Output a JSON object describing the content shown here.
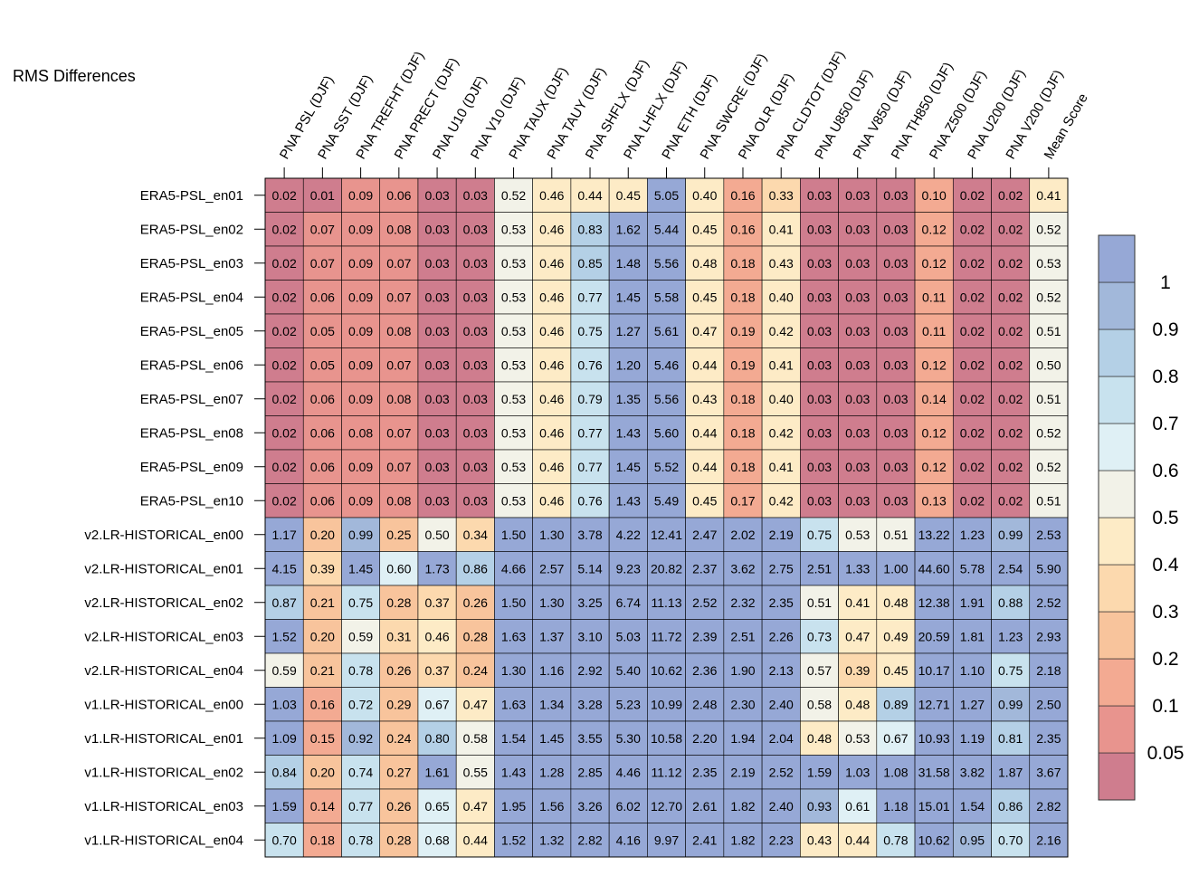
{
  "chart_data": {
    "type": "heatmap",
    "title": "RMS Differences",
    "columns": [
      "PNA PSL (DJF)",
      "PNA SST (DJF)",
      "PNA TREFHT (DJF)",
      "PNA PRECT (DJF)",
      "PNA U10 (DJF)",
      "PNA V10 (DJF)",
      "PNA TAUX (DJF)",
      "PNA TAUY (DJF)",
      "PNA SHFLX (DJF)",
      "PNA LHFLX (DJF)",
      "PNA ETH (DJF)",
      "PNA SWCRE (DJF)",
      "PNA OLR (DJF)",
      "PNA CLDTOT (DJF)",
      "PNA U850 (DJF)",
      "PNA V850 (DJF)",
      "PNA TH850 (DJF)",
      "PNA Z500 (DJF)",
      "PNA U200 (DJF)",
      "PNA V200 (DJF)",
      "Mean Score"
    ],
    "rows": [
      {
        "name": "ERA5-PSL_en01",
        "values": [
          "0.02",
          "0.01",
          "0.09",
          "0.06",
          "0.03",
          "0.03",
          "0.52",
          "0.46",
          "0.44",
          "0.45",
          "5.05",
          "0.40",
          "0.16",
          "0.33",
          "0.03",
          "0.03",
          "0.03",
          "0.10",
          "0.02",
          "0.02",
          "0.41"
        ]
      },
      {
        "name": "ERA5-PSL_en02",
        "values": [
          "0.02",
          "0.07",
          "0.09",
          "0.08",
          "0.03",
          "0.03",
          "0.53",
          "0.46",
          "0.83",
          "1.62",
          "5.44",
          "0.45",
          "0.16",
          "0.41",
          "0.03",
          "0.03",
          "0.03",
          "0.12",
          "0.02",
          "0.02",
          "0.52"
        ]
      },
      {
        "name": "ERA5-PSL_en03",
        "values": [
          "0.02",
          "0.07",
          "0.09",
          "0.07",
          "0.03",
          "0.03",
          "0.53",
          "0.46",
          "0.85",
          "1.48",
          "5.56",
          "0.48",
          "0.18",
          "0.43",
          "0.03",
          "0.03",
          "0.03",
          "0.12",
          "0.02",
          "0.02",
          "0.53"
        ]
      },
      {
        "name": "ERA5-PSL_en04",
        "values": [
          "0.02",
          "0.06",
          "0.09",
          "0.07",
          "0.03",
          "0.03",
          "0.53",
          "0.46",
          "0.77",
          "1.45",
          "5.58",
          "0.45",
          "0.18",
          "0.40",
          "0.03",
          "0.03",
          "0.03",
          "0.11",
          "0.02",
          "0.02",
          "0.52"
        ]
      },
      {
        "name": "ERA5-PSL_en05",
        "values": [
          "0.02",
          "0.05",
          "0.09",
          "0.08",
          "0.03",
          "0.03",
          "0.53",
          "0.46",
          "0.75",
          "1.27",
          "5.61",
          "0.47",
          "0.19",
          "0.42",
          "0.03",
          "0.03",
          "0.03",
          "0.11",
          "0.02",
          "0.02",
          "0.51"
        ]
      },
      {
        "name": "ERA5-PSL_en06",
        "values": [
          "0.02",
          "0.05",
          "0.09",
          "0.07",
          "0.03",
          "0.03",
          "0.53",
          "0.46",
          "0.76",
          "1.20",
          "5.46",
          "0.44",
          "0.19",
          "0.41",
          "0.03",
          "0.03",
          "0.03",
          "0.12",
          "0.02",
          "0.02",
          "0.50"
        ]
      },
      {
        "name": "ERA5-PSL_en07",
        "values": [
          "0.02",
          "0.06",
          "0.09",
          "0.08",
          "0.03",
          "0.03",
          "0.53",
          "0.46",
          "0.79",
          "1.35",
          "5.56",
          "0.43",
          "0.18",
          "0.40",
          "0.03",
          "0.03",
          "0.03",
          "0.14",
          "0.02",
          "0.02",
          "0.51"
        ]
      },
      {
        "name": "ERA5-PSL_en08",
        "values": [
          "0.02",
          "0.06",
          "0.08",
          "0.07",
          "0.03",
          "0.03",
          "0.53",
          "0.46",
          "0.77",
          "1.43",
          "5.60",
          "0.44",
          "0.18",
          "0.42",
          "0.03",
          "0.03",
          "0.03",
          "0.12",
          "0.02",
          "0.02",
          "0.52"
        ]
      },
      {
        "name": "ERA5-PSL_en09",
        "values": [
          "0.02",
          "0.06",
          "0.09",
          "0.07",
          "0.03",
          "0.03",
          "0.53",
          "0.46",
          "0.77",
          "1.45",
          "5.52",
          "0.44",
          "0.18",
          "0.41",
          "0.03",
          "0.03",
          "0.03",
          "0.12",
          "0.02",
          "0.02",
          "0.52"
        ]
      },
      {
        "name": "ERA5-PSL_en10",
        "values": [
          "0.02",
          "0.06",
          "0.09",
          "0.08",
          "0.03",
          "0.03",
          "0.53",
          "0.46",
          "0.76",
          "1.43",
          "5.49",
          "0.45",
          "0.17",
          "0.42",
          "0.03",
          "0.03",
          "0.03",
          "0.13",
          "0.02",
          "0.02",
          "0.51"
        ]
      },
      {
        "name": "v2.LR-HISTORICAL_en00",
        "values": [
          "1.17",
          "0.20",
          "0.99",
          "0.25",
          "0.50",
          "0.34",
          "1.50",
          "1.30",
          "3.78",
          "4.22",
          "12.41",
          "2.47",
          "2.02",
          "2.19",
          "0.75",
          "0.53",
          "0.51",
          "13.22",
          "1.23",
          "0.99",
          "2.53"
        ]
      },
      {
        "name": "v2.LR-HISTORICAL_en01",
        "values": [
          "4.15",
          "0.39",
          "1.45",
          "0.60",
          "1.73",
          "0.86",
          "4.66",
          "2.57",
          "5.14",
          "9.23",
          "20.82",
          "2.37",
          "3.62",
          "2.75",
          "2.51",
          "1.33",
          "1.00",
          "44.60",
          "5.78",
          "2.54",
          "5.90"
        ]
      },
      {
        "name": "v2.LR-HISTORICAL_en02",
        "values": [
          "0.87",
          "0.21",
          "0.75",
          "0.28",
          "0.37",
          "0.26",
          "1.50",
          "1.30",
          "3.25",
          "6.74",
          "11.13",
          "2.52",
          "2.32",
          "2.35",
          "0.51",
          "0.41",
          "0.48",
          "12.38",
          "1.91",
          "0.88",
          "2.52"
        ]
      },
      {
        "name": "v2.LR-HISTORICAL_en03",
        "values": [
          "1.52",
          "0.20",
          "0.59",
          "0.31",
          "0.46",
          "0.28",
          "1.63",
          "1.37",
          "3.10",
          "5.03",
          "11.72",
          "2.39",
          "2.51",
          "2.26",
          "0.73",
          "0.47",
          "0.49",
          "20.59",
          "1.81",
          "1.23",
          "2.93"
        ]
      },
      {
        "name": "v2.LR-HISTORICAL_en04",
        "values": [
          "0.59",
          "0.21",
          "0.78",
          "0.26",
          "0.37",
          "0.24",
          "1.30",
          "1.16",
          "2.92",
          "5.40",
          "10.62",
          "2.36",
          "1.90",
          "2.13",
          "0.57",
          "0.39",
          "0.45",
          "10.17",
          "1.10",
          "0.75",
          "2.18"
        ]
      },
      {
        "name": "v1.LR-HISTORICAL_en00",
        "values": [
          "1.03",
          "0.16",
          "0.72",
          "0.29",
          "0.67",
          "0.47",
          "1.63",
          "1.34",
          "3.28",
          "5.23",
          "10.99",
          "2.48",
          "2.30",
          "2.40",
          "0.58",
          "0.48",
          "0.89",
          "12.71",
          "1.27",
          "0.99",
          "2.50"
        ]
      },
      {
        "name": "v1.LR-HISTORICAL_en01",
        "values": [
          "1.09",
          "0.15",
          "0.92",
          "0.24",
          "0.80",
          "0.58",
          "1.54",
          "1.45",
          "3.55",
          "5.30",
          "10.58",
          "2.20",
          "1.94",
          "2.04",
          "0.48",
          "0.53",
          "0.67",
          "10.93",
          "1.19",
          "0.81",
          "2.35"
        ]
      },
      {
        "name": "v1.LR-HISTORICAL_en02",
        "values": [
          "0.84",
          "0.20",
          "0.74",
          "0.27",
          "1.61",
          "0.55",
          "1.43",
          "1.28",
          "2.85",
          "4.46",
          "11.12",
          "2.35",
          "2.19",
          "2.52",
          "1.59",
          "1.03",
          "1.08",
          "31.58",
          "3.82",
          "1.87",
          "3.67"
        ]
      },
      {
        "name": "v1.LR-HISTORICAL_en03",
        "values": [
          "1.59",
          "0.14",
          "0.77",
          "0.26",
          "0.65",
          "0.47",
          "1.95",
          "1.56",
          "3.26",
          "6.02",
          "12.70",
          "2.61",
          "1.82",
          "2.40",
          "0.93",
          "0.61",
          "1.18",
          "15.01",
          "1.54",
          "0.86",
          "2.82"
        ]
      },
      {
        "name": "v1.LR-HISTORICAL_en04",
        "values": [
          "0.70",
          "0.18",
          "0.78",
          "0.28",
          "0.68",
          "0.44",
          "1.52",
          "1.32",
          "2.82",
          "4.16",
          "9.97",
          "2.41",
          "1.82",
          "2.23",
          "0.43",
          "0.44",
          "0.78",
          "10.62",
          "0.95",
          "0.70",
          "2.16"
        ]
      }
    ],
    "colorbar": {
      "bounds": [
        0,
        0.05,
        0.1,
        0.2,
        0.3,
        0.4,
        0.5,
        0.6,
        0.7,
        0.8,
        0.9,
        1
      ],
      "colors": [
        "#cf7d8e",
        "#e8948e",
        "#f3aa92",
        "#f8c49c",
        "#fcd9ae",
        "#fdebc6",
        "#f2f2e8",
        "#dff0f5",
        "#c8e2ee",
        "#b4d0e6",
        "#a2b8da",
        "#96a8d6"
      ],
      "tick_labels": [
        "0.05",
        "0.1",
        "0.2",
        "0.3",
        "0.4",
        "0.5",
        "0.6",
        "0.7",
        "0.8",
        "0.9",
        "1"
      ]
    }
  }
}
